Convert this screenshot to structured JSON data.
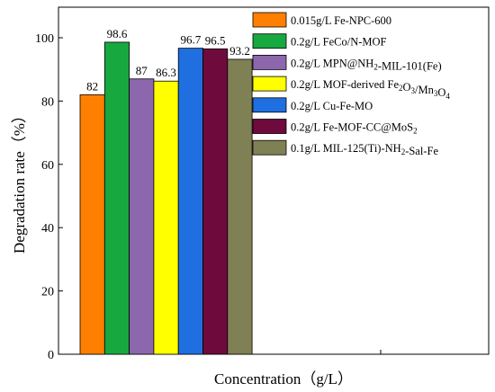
{
  "chart_data": {
    "type": "bar",
    "xlabel": "Concentration（g/L）",
    "ylabel": "Degradation rate（%）",
    "ylim": [
      0,
      110
    ],
    "yticks": [
      0,
      20,
      40,
      60,
      80,
      100
    ],
    "grid": false,
    "legend_position": "top-right",
    "series": [
      {
        "name": "0.015g/L Fe-NPC-600",
        "name_parts": [
          {
            "t": "0.015g/L Fe-NPC-600"
          }
        ],
        "value": 82,
        "label": "82",
        "color": "#ff8000"
      },
      {
        "name": "0.2g/L FeCo/N-MOF",
        "name_parts": [
          {
            "t": "0.2g/L FeCo/N-MOF"
          }
        ],
        "value": 98.6,
        "label": "98.6",
        "color": "#17a840"
      },
      {
        "name": "0.2g/L MPN@NH2-MIL-101(Fe)",
        "name_parts": [
          {
            "t": "0.2g/L MPN@NH"
          },
          {
            "t": "2",
            "sub": true
          },
          {
            "t": "-MIL-101(Fe)"
          }
        ],
        "value": 87,
        "label": "87",
        "color": "#8c67ad"
      },
      {
        "name": "0.2g/L MOF-derived Fe2O3/Mn3O4",
        "name_parts": [
          {
            "t": "0.2g/L MOF-derived Fe"
          },
          {
            "t": "2",
            "sub": true
          },
          {
            "t": "O"
          },
          {
            "t": "3",
            "sub": true
          },
          {
            "t": "/Mn"
          },
          {
            "t": "3",
            "sub": true
          },
          {
            "t": "O"
          },
          {
            "t": "4",
            "sub": true
          }
        ],
        "value": 86.3,
        "label": "86.3",
        "color": "#ffff00"
      },
      {
        "name": "0.2g/L Cu-Fe-MO",
        "name_parts": [
          {
            "t": "0.2g/L Cu-Fe-MO"
          }
        ],
        "value": 96.7,
        "label": "96.7",
        "color": "#1f6fe0"
      },
      {
        "name": "0.2g/L Fe-MOF-CC@MoS2",
        "name_parts": [
          {
            "t": "0.2g/L Fe-MOF-CC@MoS"
          },
          {
            "t": "2",
            "sub": true
          }
        ],
        "value": 96.5,
        "label": "96.5",
        "color": "#6e0b3c"
      },
      {
        "name": "0.1g/L MIL-125(Ti)-NH2-Sal-Fe",
        "name_parts": [
          {
            "t": "0.1g/L MIL-125(Ti)-NH"
          },
          {
            "t": "2",
            "sub": true
          },
          {
            "t": "-Sal-Fe"
          }
        ],
        "value": 93.2,
        "label": "93.2",
        "color": "#808055"
      }
    ]
  }
}
